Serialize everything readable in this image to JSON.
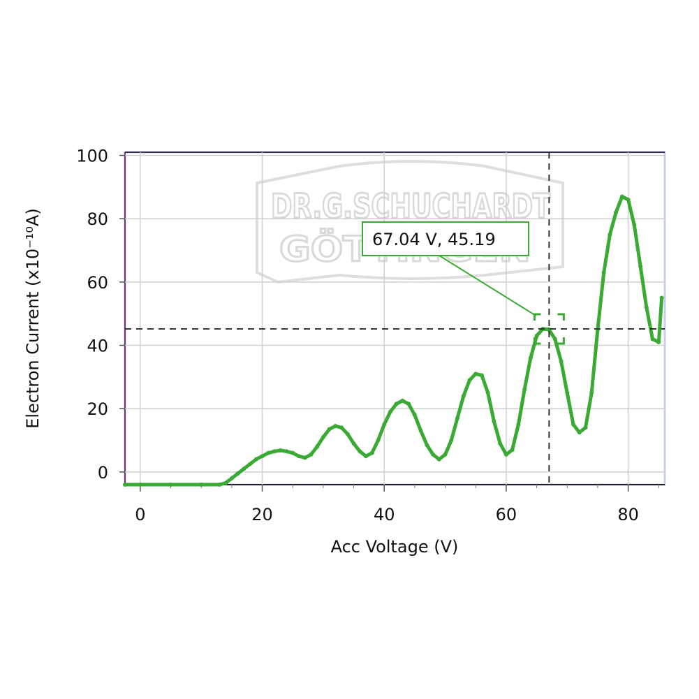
{
  "chart_data": {
    "type": "line",
    "xlabel": "Acc Voltage (V)",
    "ylabel": "Electron Current (x10⁻¹⁰A)",
    "xlim": [
      -2.5,
      86
    ],
    "ylim": [
      -4,
      101
    ],
    "x_ticks": [
      0,
      20,
      40,
      60,
      80
    ],
    "y_ticks": [
      0,
      20,
      40,
      60,
      80,
      100
    ],
    "grid": true,
    "series": [
      {
        "color": "#3aaa35",
        "x": [
          -2.5,
          0,
          5,
          10,
          13,
          14,
          15,
          16,
          17,
          18,
          19,
          20,
          21,
          22,
          23,
          24,
          25,
          26,
          27,
          28,
          29,
          30,
          31,
          32,
          33,
          34,
          35,
          36,
          37,
          38,
          39,
          40,
          41,
          42,
          43,
          44,
          45,
          46,
          47,
          48,
          49,
          50,
          51,
          52,
          53,
          54,
          55,
          56,
          57,
          58,
          59,
          60,
          61,
          62,
          63,
          64,
          65,
          66,
          67,
          68,
          69,
          70,
          71,
          72,
          73,
          74,
          75,
          76,
          77,
          78,
          79,
          80,
          81,
          82,
          83,
          84,
          85,
          85.5
        ],
        "y": [
          -4,
          -4,
          -4,
          -4,
          -4,
          -3.5,
          -2,
          -0.5,
          1,
          2.5,
          4,
          5,
          6,
          6.5,
          6.8,
          6.5,
          6,
          5,
          4.5,
          5.5,
          8,
          11,
          13.5,
          14.5,
          14,
          12,
          9,
          6.5,
          5,
          6,
          10,
          15,
          19,
          21.5,
          22.5,
          21.5,
          18,
          13,
          8.5,
          5.5,
          4,
          5.5,
          10,
          17,
          24,
          29,
          31,
          30.5,
          25,
          16,
          9,
          5.5,
          7,
          15,
          26,
          36,
          43,
          45.19,
          45,
          42,
          35,
          25,
          15,
          12.5,
          14,
          25,
          45,
          63,
          75,
          82,
          87,
          86,
          78,
          65,
          52,
          42,
          41,
          55
        ]
      }
    ],
    "cursor": {
      "x": 67.04,
      "y": 45.19
    },
    "cursor_label": "67.04 V, 45.19"
  },
  "watermark": {
    "line1": "DR.G.SCHUCHARDT",
    "line2": "GÖTTINGEN"
  }
}
